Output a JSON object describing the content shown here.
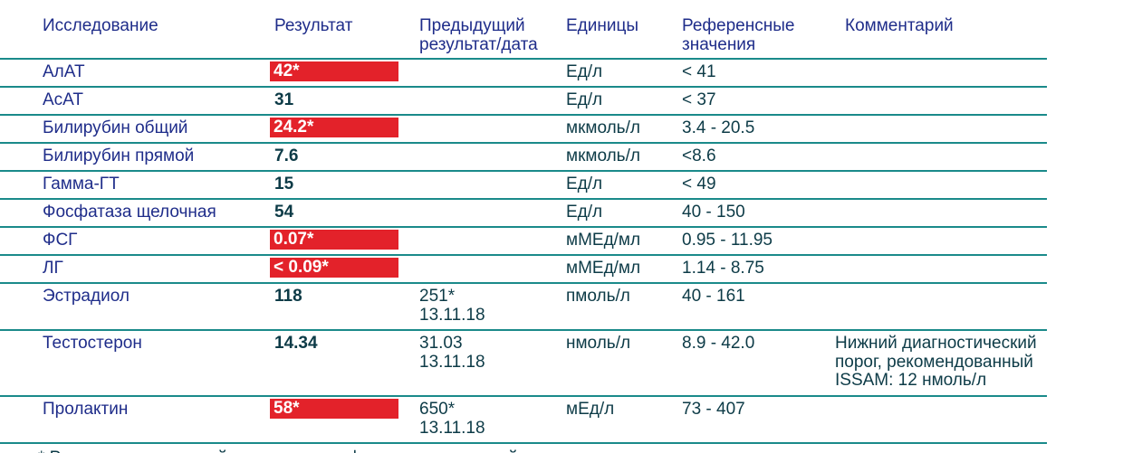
{
  "table": {
    "header": [
      "Исследование",
      "Результат",
      [
        "Предыдущий",
        "результат/дата"
      ],
      "Единицы",
      [
        "Референсные",
        "значения"
      ],
      "Комментарий"
    ],
    "rows": [
      {
        "name": "АлАТ",
        "result": "42*",
        "flag": true,
        "previous": [],
        "units": "Ед/л",
        "reference": "< 41",
        "comment": []
      },
      {
        "name": "АсАТ",
        "result": "31",
        "flag": false,
        "previous": [],
        "units": "Ед/л",
        "reference": "< 37",
        "comment": []
      },
      {
        "name": "Билирубин общий",
        "result": "24.2*",
        "flag": true,
        "previous": [],
        "units": "мкмоль/л",
        "reference": "3.4 - 20.5",
        "comment": []
      },
      {
        "name": "Билирубин прямой",
        "result": "7.6",
        "flag": false,
        "previous": [],
        "units": "мкмоль/л",
        "reference": "<8.6",
        "comment": []
      },
      {
        "name": "Гамма-ГТ",
        "result": "15",
        "flag": false,
        "previous": [],
        "units": "Ед/л",
        "reference": "< 49",
        "comment": []
      },
      {
        "name": "Фосфатаза щелочная",
        "result": "54",
        "flag": false,
        "previous": [],
        "units": "Ед/л",
        "reference": "40 - 150",
        "comment": []
      },
      {
        "name": "ФСГ",
        "result": "0.07*",
        "flag": true,
        "previous": [],
        "units": "мМЕд/мл",
        "reference": "0.95 - 11.95",
        "comment": []
      },
      {
        "name": "ЛГ",
        "result": "< 0.09*",
        "flag": true,
        "previous": [],
        "units": "мМЕд/мл",
        "reference": "1.14 - 8.75",
        "comment": []
      },
      {
        "name": "Эстрадиол",
        "result": "118",
        "flag": false,
        "previous": [
          "251*",
          "13.11.18"
        ],
        "units": "пмоль/л",
        "reference": "40 - 161",
        "comment": []
      },
      {
        "name": "Тестостерон",
        "result": "14.34",
        "flag": false,
        "previous": [
          "31.03",
          "13.11.18"
        ],
        "units": "нмоль/л",
        "reference": "8.9 - 42.0",
        "comment": [
          "Нижний диагностический",
          "порог, рекомендованный",
          "ISSAM: 12 нмоль/л"
        ]
      },
      {
        "name": "Пролактин",
        "result": "58*",
        "flag": true,
        "previous": [
          "650*",
          "13.11.18"
        ],
        "units": "мЕд/л",
        "reference": "73 - 407",
        "comment": []
      }
    ],
    "footnote": "* Результат, выходящий за пределы референсных значений"
  }
}
